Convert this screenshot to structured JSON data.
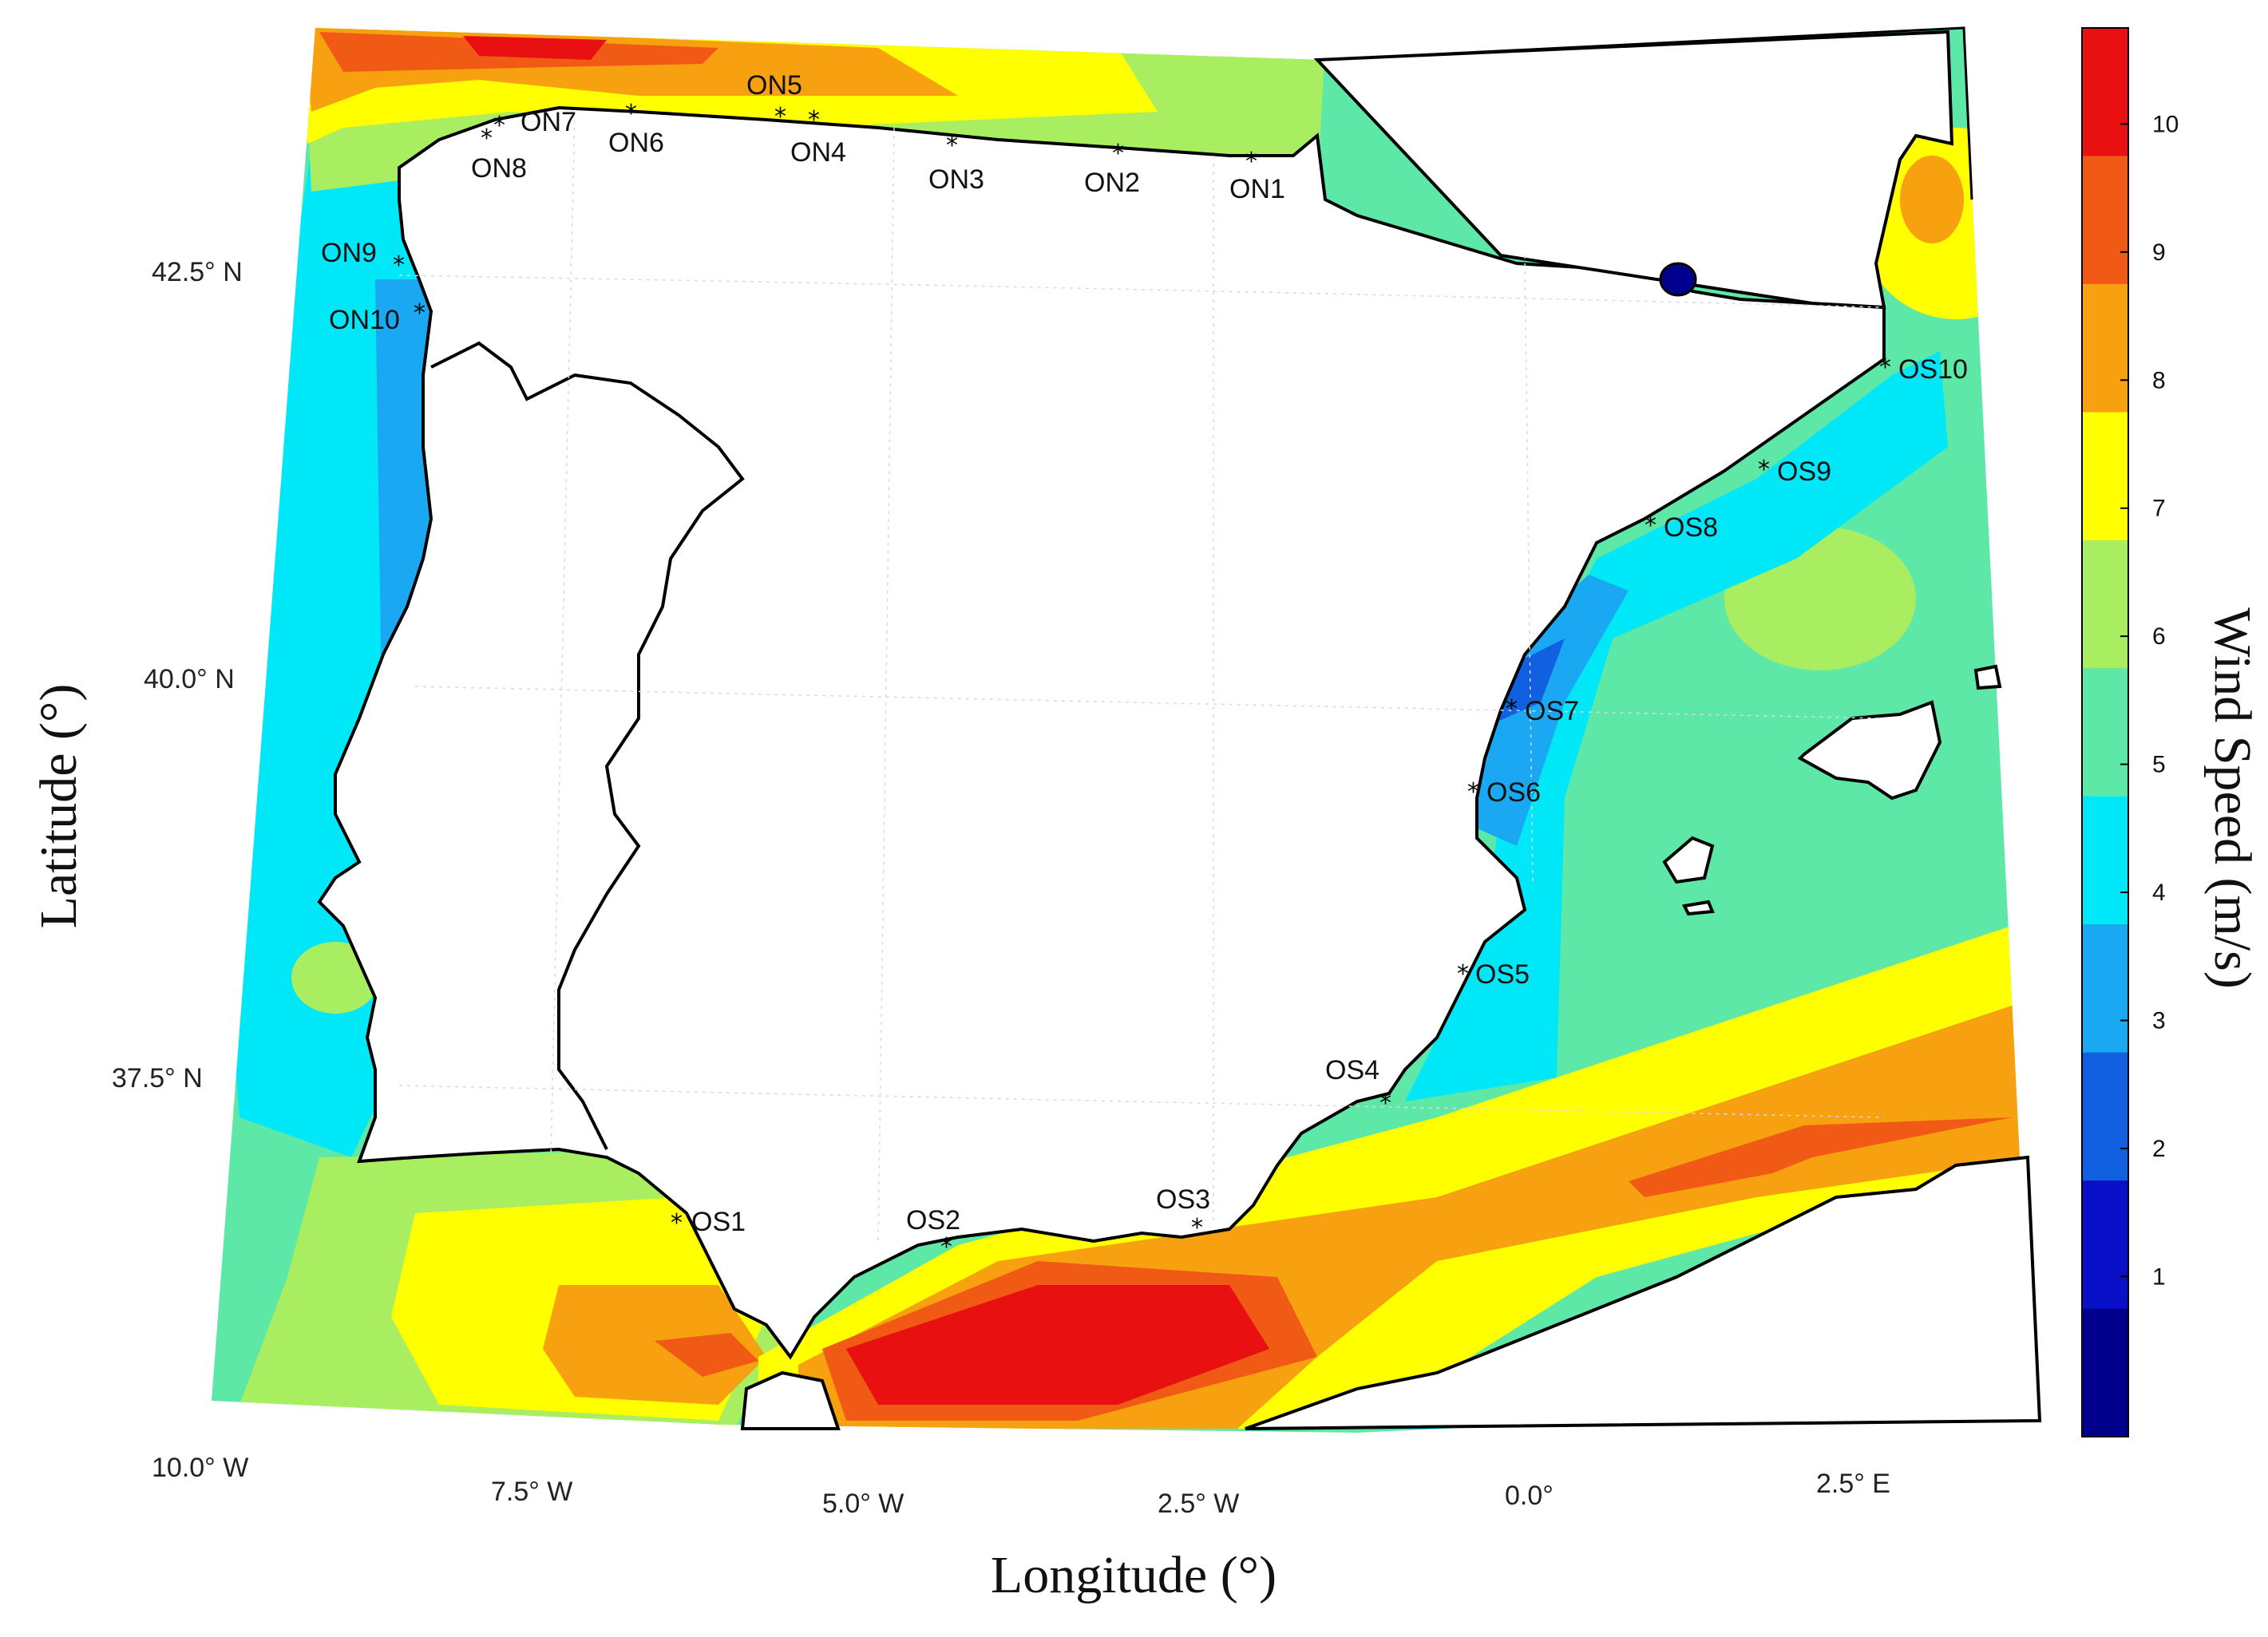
{
  "map": {
    "xlabel": "Longitude (°)",
    "ylabel": "Latitude (°)",
    "longitude_ticks": [
      "10.0° W",
      "7.5° W",
      "5.0° W",
      "2.5° W",
      "0.0°",
      "2.5° E"
    ],
    "latitude_ticks": [
      "42.5° N",
      "40.0° N",
      "37.5° N"
    ]
  },
  "colorbar": {
    "title": "Wind Speed (m/s)",
    "ticks": [
      "10",
      "9",
      "8",
      "7",
      "6",
      "5",
      "4",
      "3",
      "2",
      "1"
    ],
    "colors": [
      "#e81010",
      "#f05a14",
      "#f7a010",
      "#ffff00",
      "#a8ee60",
      "#5ee8a8",
      "#00e8f8",
      "#1aa8f2",
      "#1060e0",
      "#0a10c8",
      "#00008c"
    ]
  },
  "stations": {
    "ON1": "ON1",
    "ON2": "ON2",
    "ON3": "ON3",
    "ON4": "ON4",
    "ON5": "ON5",
    "ON6": "ON6",
    "ON7": "ON7",
    "ON8": "ON8",
    "ON9": "ON9",
    "ON10": "ON10",
    "OS1": "OS1",
    "OS2": "OS2",
    "OS3": "OS3",
    "OS4": "OS4",
    "OS5": "OS5",
    "OS6": "OS6",
    "OS7": "OS7",
    "OS8": "OS8",
    "OS9": "OS9",
    "OS10": "OS10"
  },
  "marker_symbol": "*"
}
